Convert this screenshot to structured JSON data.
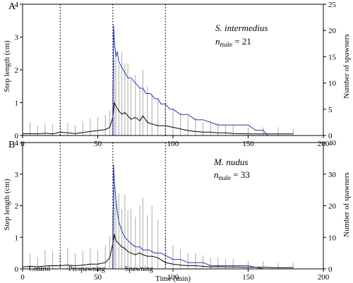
{
  "chart_data": [
    {
      "type": "line",
      "panel_label": "A",
      "species": "S. intermedius",
      "n_label_main": "n",
      "n_label_sub": "male",
      "n_label_value": " = 21",
      "xlim": [
        0,
        200
      ],
      "x_ticks": [
        "0",
        "50",
        "100",
        "150",
        "200"
      ],
      "ylabel": "Step length (cm)",
      "ylim": [
        0,
        4
      ],
      "y_ticks": [
        "0",
        "1",
        "2",
        "3",
        "4"
      ],
      "y2label": "Number of spawners",
      "y2lim": [
        0,
        25
      ],
      "y2_ticks": [
        "0",
        "5",
        "10",
        "15",
        "20",
        "25"
      ],
      "phase_boundaries": [
        25,
        60,
        95
      ],
      "series": [
        {
          "axis": "left",
          "color": "#000000",
          "error_color": "#aaaaaa",
          "x": [
            0,
            5,
            10,
            15,
            20,
            25,
            30,
            35,
            40,
            45,
            50,
            55,
            58,
            60,
            61,
            62,
            64,
            66,
            68,
            70,
            72,
            75,
            78,
            80,
            83,
            86,
            90,
            95,
            100,
            105,
            110,
            115,
            120,
            125,
            130,
            135,
            140,
            150,
            160,
            170,
            180
          ],
          "values": [
            0.05,
            0.06,
            0.05,
            0.07,
            0.05,
            0.1,
            0.08,
            0.06,
            0.09,
            0.12,
            0.15,
            0.18,
            0.25,
            0.55,
            1.0,
            0.9,
            0.75,
            0.65,
            0.7,
            0.6,
            0.5,
            0.55,
            0.45,
            0.6,
            0.4,
            0.35,
            0.3,
            0.3,
            0.25,
            0.2,
            0.15,
            0.12,
            0.1,
            0.1,
            0.08,
            0.08,
            0.06,
            0.05,
            0.05,
            0.05,
            0.05
          ],
          "errors": [
            0.3,
            0.35,
            0.25,
            0.3,
            0.3,
            0.35,
            0.3,
            0.25,
            0.35,
            0.4,
            0.4,
            0.45,
            0.5,
            1.0,
            1.3,
            1.6,
            1.4,
            1.9,
            1.5,
            1.6,
            1.2,
            1.3,
            1.0,
            1.4,
            1.1,
            0.9,
            0.8,
            0.7,
            0.6,
            0.5,
            0.45,
            0.4,
            0.3,
            0.35,
            0.3,
            0.25,
            0.25,
            0.2,
            0.2,
            0.2,
            0.15
          ]
        },
        {
          "axis": "right",
          "color": "#2b35b0",
          "x": [
            60,
            60.5,
            61,
            62,
            63,
            64,
            66,
            68,
            70,
            72,
            75,
            78,
            80,
            82,
            85,
            88,
            90,
            92,
            95,
            98,
            100,
            105,
            110,
            115,
            120,
            130,
            140,
            150,
            155,
            160,
            163
          ],
          "values": [
            0,
            21,
            18,
            15,
            16,
            14,
            13,
            12,
            11,
            11,
            10,
            9,
            9,
            8,
            8,
            7,
            7,
            6,
            6,
            5,
            5,
            4,
            4,
            3,
            3,
            2,
            2,
            2,
            1,
            1,
            0
          ]
        }
      ]
    },
    {
      "type": "line",
      "panel_label": "B",
      "species": "M. nudus",
      "n_label_main": "n",
      "n_label_sub": "male",
      "n_label_value": " = 33",
      "xlim": [
        0,
        200
      ],
      "x_ticks": [
        "0",
        "50",
        "100",
        "150",
        "200"
      ],
      "xlabel": "Time (min)",
      "ylabel": "Step length (cm)",
      "ylim": [
        0,
        4
      ],
      "y_ticks": [
        "0",
        "1",
        "2",
        "3",
        "4"
      ],
      "y2label": "Number of spawners",
      "y2lim": [
        0,
        40
      ],
      "y2_ticks": [
        "0",
        "10",
        "20",
        "30",
        "40"
      ],
      "phase_boundaries": [
        25,
        60,
        95
      ],
      "phases": [
        "Control",
        "Prespawning",
        "Spawning"
      ],
      "series": [
        {
          "axis": "left",
          "color": "#000000",
          "error_color": "#aaaaaa",
          "x": [
            0,
            5,
            10,
            15,
            20,
            25,
            30,
            35,
            40,
            45,
            50,
            55,
            58,
            60,
            61,
            62,
            64,
            66,
            68,
            70,
            72,
            75,
            78,
            80,
            83,
            86,
            90,
            95,
            100,
            105,
            110,
            115,
            120,
            125,
            130,
            135,
            140,
            150,
            160,
            170,
            180
          ],
          "values": [
            0.06,
            0.08,
            0.07,
            0.09,
            0.1,
            0.1,
            0.12,
            0.1,
            0.12,
            0.15,
            0.15,
            0.2,
            0.35,
            0.8,
            1.1,
            0.9,
            0.8,
            0.7,
            0.65,
            0.55,
            0.5,
            0.45,
            0.5,
            0.45,
            0.4,
            0.4,
            0.35,
            0.2,
            0.15,
            0.12,
            0.1,
            0.1,
            0.08,
            0.06,
            0.07,
            0.06,
            0.06,
            0.05,
            0.05,
            0.04,
            0.04
          ],
          "errors": [
            0.35,
            0.4,
            0.3,
            0.5,
            0.45,
            0.35,
            0.55,
            0.4,
            0.45,
            0.5,
            0.45,
            0.55,
            0.7,
            1.0,
            1.5,
            1.3,
            1.6,
            1.2,
            1.7,
            1.3,
            1.4,
            1.2,
            1.5,
            1.8,
            1.3,
            1.6,
            1.2,
            0.8,
            0.6,
            0.5,
            0.4,
            0.4,
            0.35,
            0.3,
            0.3,
            0.25,
            0.25,
            0.2,
            0.2,
            0.15,
            0.15
          ]
        },
        {
          "axis": "right",
          "color": "#2b35b0",
          "x": [
            60,
            60.5,
            61,
            62,
            63,
            64,
            66,
            68,
            70,
            72,
            75,
            78,
            80,
            84,
            88,
            92,
            96,
            100,
            105,
            110,
            115,
            120,
            125,
            130,
            140,
            150,
            160,
            162
          ],
          "values": [
            0,
            33,
            28,
            22,
            18,
            15,
            12,
            10,
            9,
            8,
            7,
            7,
            6,
            6,
            5,
            5,
            4,
            3,
            3,
            2,
            2,
            2,
            1,
            1,
            1,
            1,
            0,
            0
          ]
        }
      ]
    }
  ]
}
